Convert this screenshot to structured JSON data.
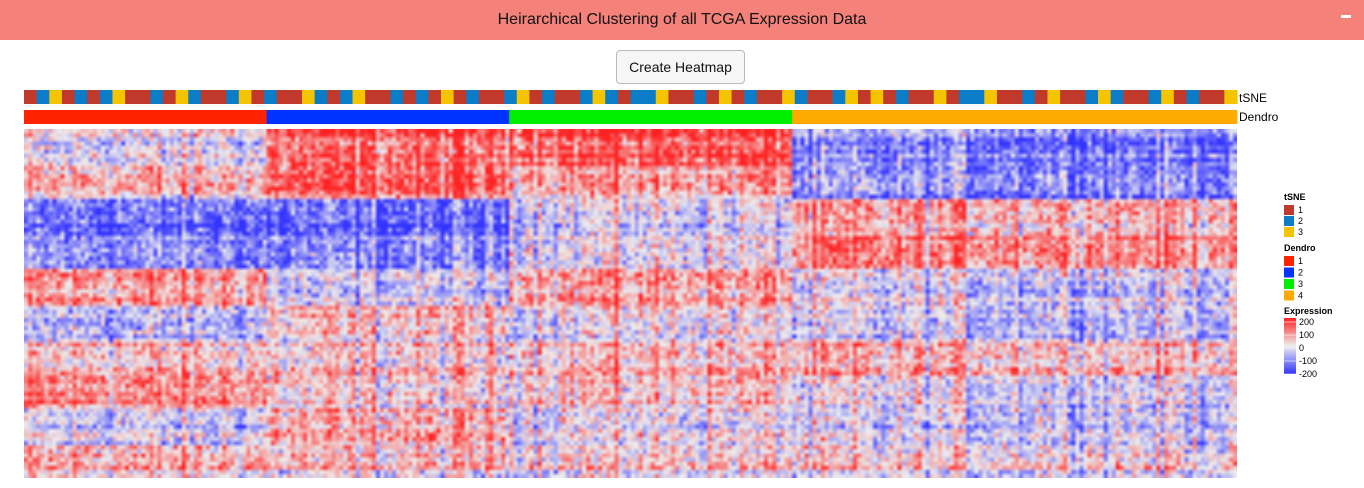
{
  "header": {
    "title": "Heirarchical Clustering of all TCGA Expression Data"
  },
  "controls": {
    "create_label": "Create Heatmap"
  },
  "chart_data": {
    "type": "heatmap",
    "title": "Heirarchical Clustering of all TCGA Expression Data",
    "annotation_rows": [
      {
        "name": "tSNE",
        "pattern": [
          1,
          2,
          3,
          1,
          2,
          1,
          2,
          3,
          1,
          1,
          2,
          1,
          3,
          2,
          1,
          1,
          2,
          3,
          1,
          2,
          1,
          1,
          3,
          2,
          1,
          2,
          3,
          1,
          1,
          2,
          1,
          2,
          1,
          3,
          1,
          2,
          1,
          1,
          2,
          3,
          1,
          2,
          1,
          1,
          2,
          3,
          2,
          1,
          2,
          2,
          3,
          1,
          1,
          2,
          1,
          3,
          1,
          2,
          1,
          1,
          3,
          2,
          1,
          1,
          2,
          3,
          1,
          3,
          1,
          2,
          1,
          1,
          3,
          1,
          2,
          2,
          3,
          1,
          1,
          2,
          1,
          3,
          1,
          1,
          2,
          3,
          2,
          1,
          1,
          2,
          3,
          1,
          2,
          1,
          1,
          3
        ]
      },
      {
        "name": "Dendro",
        "segments": [
          {
            "cluster": 1,
            "columns": 60
          },
          {
            "cluster": 2,
            "columns": 60
          },
          {
            "cluster": 3,
            "columns": 70
          },
          {
            "cluster": 4,
            "columns": 110
          }
        ]
      }
    ],
    "grid": {
      "columns": 300,
      "rows": 85
    },
    "block_means": {
      "cluster_1": [
        -30,
        60,
        -150,
        -120,
        90,
        -60,
        40,
        110,
        -40,
        70
      ],
      "cluster_2": [
        130,
        150,
        -170,
        -130,
        -40,
        50,
        30,
        20,
        60,
        50
      ],
      "cluster_3": [
        160,
        90,
        -20,
        -10,
        90,
        10,
        60,
        50,
        -10,
        40
      ],
      "cluster_4": [
        -140,
        -110,
        70,
        110,
        -30,
        -40,
        60,
        -20,
        -40,
        30
      ]
    },
    "legend": {
      "tsne_title": "tSNE",
      "tsne_labels": [
        "1",
        "2",
        "3"
      ],
      "tsne_colors": [
        "#c0392b",
        "#0a7cc8",
        "#f5c400"
      ],
      "dendro_title": "Dendro",
      "dendro_labels": [
        "1",
        "2",
        "3",
        "4"
      ],
      "dendro_colors": [
        "#ff2200",
        "#0033ff",
        "#00ee00",
        "#ffaa00"
      ],
      "expression_title": "Expression",
      "expression_ticks": [
        "200",
        "100",
        "0",
        "-100",
        "-200"
      ],
      "expression_range": [
        -200,
        200
      ],
      "expression_colors": [
        "#3333ff",
        "#eeeeee",
        "#ff2222"
      ]
    }
  }
}
